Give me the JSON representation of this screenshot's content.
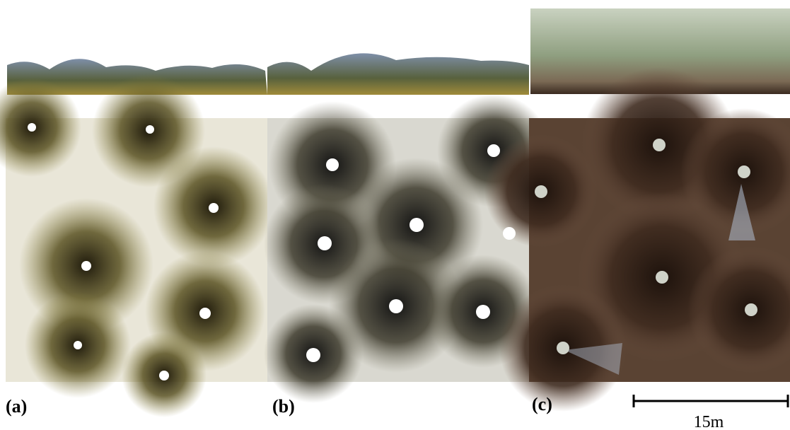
{
  "panels": [
    {
      "label": "(a)"
    },
    {
      "label": "(b)"
    },
    {
      "label": "(c)"
    }
  ],
  "scale_bar": {
    "label": "15m"
  }
}
